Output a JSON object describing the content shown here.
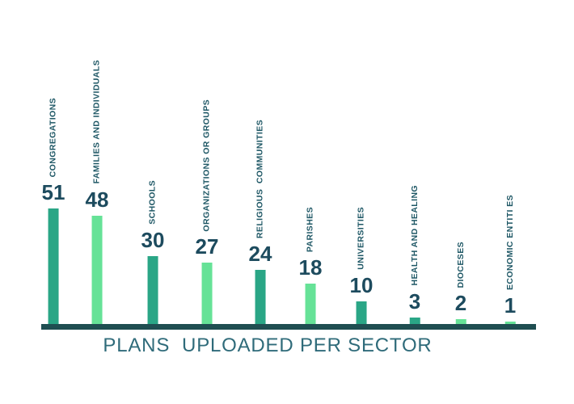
{
  "title": "PLANS  UPLOADED PER SECTOR",
  "colors": {
    "background": "#ffffff",
    "bar_dark": "#2aa686",
    "bar_light": "#66e297",
    "axis_line": "#1f4e51",
    "value_label": "#1d4b5e",
    "category_label": "#1e5765",
    "title": "#2f6b7a"
  },
  "chart_data": {
    "type": "bar",
    "title": "PLANS  UPLOADED PER SECTOR",
    "orientation": "vertical",
    "categories": [
      "CONGREGATIONS",
      "FAMILIES AND INDIVIDUALS",
      "SCHOOLS",
      "ORGANIZATIONS OR GROUPS",
      "RELIGIOUS  COMMUNITIES",
      "PARISHES",
      "UNIVERSITIES",
      "HEALTH AND HEALING",
      "DIOCESES",
      "ECONOMIC ENTITI ES"
    ],
    "values": [
      51,
      48,
      30,
      27,
      24,
      18,
      10,
      3,
      2,
      1
    ],
    "bar_color_variants": [
      "dark",
      "light",
      "dark",
      "light",
      "dark",
      "light",
      "dark",
      "dark",
      "light",
      "light"
    ],
    "value_labels_shown": true,
    "category_label_rotation_deg": 90,
    "xlabel": "",
    "ylabel": "",
    "ylim": [
      0,
      55
    ],
    "grid": false,
    "legend": "none",
    "axes_shown": [
      "x"
    ]
  }
}
